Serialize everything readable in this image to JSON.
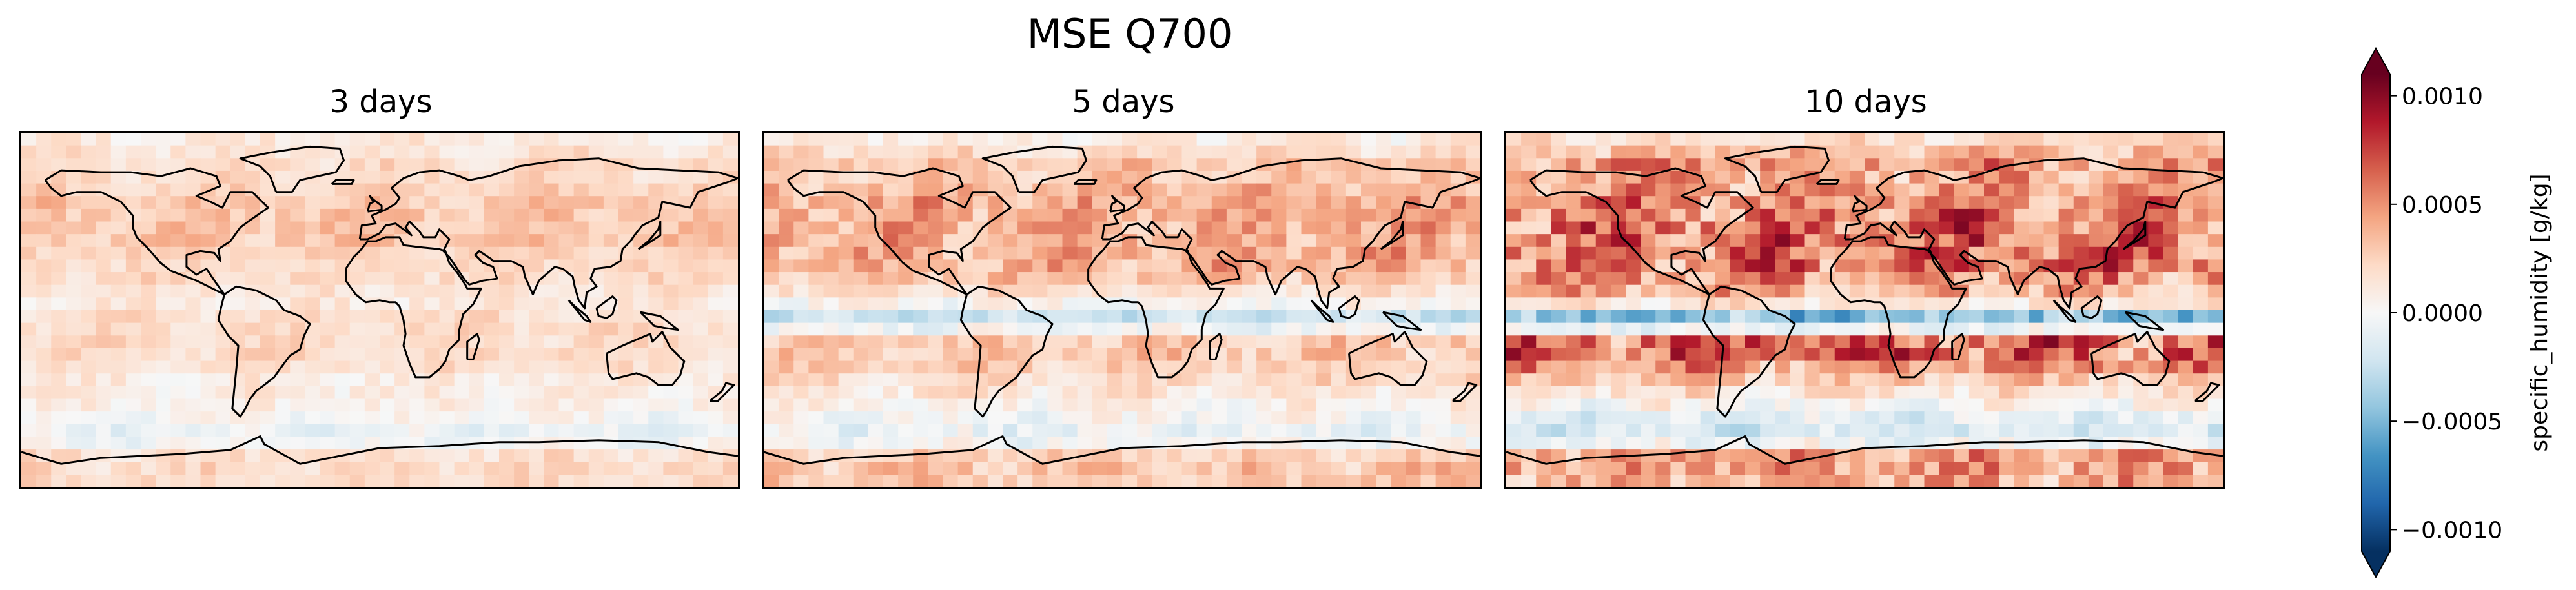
{
  "figure": {
    "title": "MSE Q700"
  },
  "colormap": {
    "name": "RdBu_r",
    "stops": [
      "#053061",
      "#2166ac",
      "#4393c3",
      "#92c5de",
      "#d1e5f0",
      "#f7f7f7",
      "#fddbc7",
      "#f4a582",
      "#d6604d",
      "#b2182b",
      "#67001f"
    ],
    "coastline_color": "#000000"
  },
  "chart_data": [
    {
      "type": "heatmap",
      "title": "3 days",
      "xlim": [
        -180,
        180
      ],
      "ylim": [
        -90,
        90
      ],
      "grid": false,
      "projection": "PlateCarree (global map with coastlines)",
      "vlim": [
        -0.0011,
        0.0011
      ],
      "zonal_mean_profile": {
        "lat": [
          85,
          75,
          65,
          55,
          45,
          35,
          25,
          15,
          5,
          -5,
          -15,
          -25,
          -35,
          -45,
          -55,
          -65,
          -75,
          -85
        ],
        "values": [
          0.0001,
          0.0002,
          0.0002,
          0.0003,
          0.0003,
          0.0003,
          0.0002,
          0.0002,
          0.0001,
          0.0002,
          0.0002,
          0.0002,
          0.0001,
          0.0001,
          0.0,
          -0.0001,
          0.0002,
          0.0002
        ]
      }
    },
    {
      "type": "heatmap",
      "title": "5 days",
      "xlim": [
        -180,
        180
      ],
      "ylim": [
        -90,
        90
      ],
      "grid": false,
      "projection": "PlateCarree (global map with coastlines)",
      "vlim": [
        -0.0011,
        0.0011
      ],
      "zonal_mean_profile": {
        "lat": [
          85,
          75,
          65,
          55,
          45,
          35,
          25,
          15,
          5,
          -5,
          -15,
          -25,
          -35,
          -45,
          -55,
          -65,
          -75,
          -85
        ],
        "values": [
          0.0001,
          0.0003,
          0.0003,
          0.0004,
          0.0004,
          0.0004,
          0.0004,
          0.0003,
          0.0001,
          -0.0003,
          0.0003,
          0.0003,
          0.0002,
          0.0001,
          0.0,
          -0.0001,
          0.0003,
          0.0003
        ]
      }
    },
    {
      "type": "heatmap",
      "title": "10 days",
      "xlim": [
        -180,
        180
      ],
      "ylim": [
        -90,
        90
      ],
      "grid": false,
      "projection": "PlateCarree (global map with coastlines)",
      "vlim": [
        -0.0011,
        0.0011
      ],
      "zonal_mean_profile": {
        "lat": [
          85,
          75,
          65,
          55,
          45,
          35,
          25,
          15,
          5,
          -5,
          -15,
          -25,
          -35,
          -45,
          -55,
          -65,
          -75,
          -85
        ],
        "values": [
          0.0002,
          0.0005,
          0.0004,
          0.0005,
          0.0006,
          0.0006,
          0.0006,
          0.0005,
          0.0003,
          -0.0006,
          0.0006,
          0.0006,
          0.0003,
          0.0001,
          -0.0001,
          -0.0002,
          0.0005,
          0.0004
        ]
      }
    },
    {
      "type": "colorbar",
      "label": "specific_humidity [g/kg]",
      "ticks": [
        -0.001,
        -0.0005,
        0.0,
        0.0005,
        0.001
      ],
      "tick_labels": [
        "−0.0010",
        "−0.0005",
        "0.0000",
        "0.0005",
        "0.0010"
      ],
      "range": [
        -0.0011,
        0.0011
      ],
      "extend": "both"
    }
  ]
}
